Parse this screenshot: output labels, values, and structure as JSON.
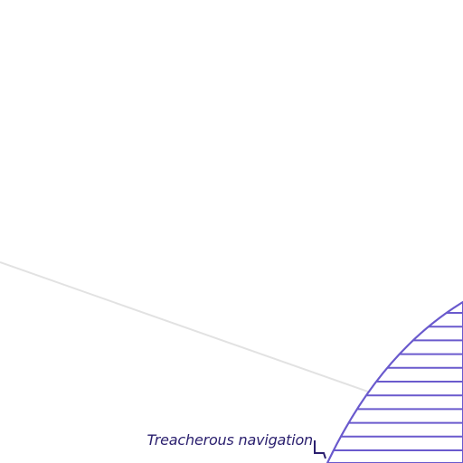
{
  "map": {
    "zone": {
      "label": "Treacherous navigation",
      "fill_pattern": "horizontal-hatch",
      "color": "#6a5acd"
    },
    "route_line": {
      "color": "#e2e2e2"
    },
    "background_color": "#ffffff",
    "label_color": "#2a1f6e"
  }
}
